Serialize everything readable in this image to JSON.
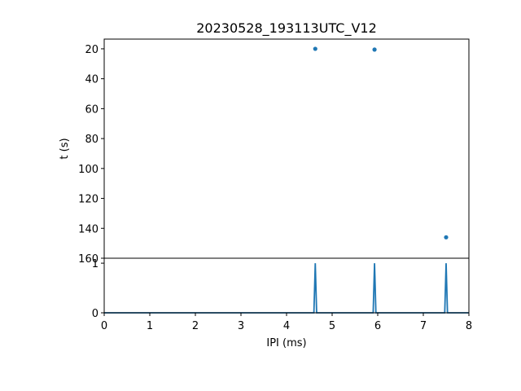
{
  "chart_data": {
    "title": "20230528_193113UTC_V12",
    "series_color": "#1f77b4",
    "top_panel": {
      "type": "scatter",
      "ylabel": "t (s)",
      "xlim": [
        0,
        8
      ],
      "ylim": [
        160,
        13.5
      ],
      "y_inverted": true,
      "yticks": [
        20,
        40,
        60,
        80,
        100,
        120,
        140,
        160
      ],
      "points": [
        {
          "x": 4.63,
          "y": 20.0
        },
        {
          "x": 5.93,
          "y": 20.5
        },
        {
          "x": 7.5,
          "y": 146.0
        }
      ]
    },
    "bottom_panel": {
      "type": "line",
      "xlabel": "IPI (ms)",
      "xlim": [
        0,
        8
      ],
      "ylim": [
        0,
        1.1
      ],
      "xticks": [
        0,
        1,
        2,
        3,
        4,
        5,
        6,
        7,
        8
      ],
      "yticks": [
        0,
        1
      ],
      "spikes": [
        {
          "x": 4.63,
          "y": 1.0
        },
        {
          "x": 5.93,
          "y": 1.0
        },
        {
          "x": 7.5,
          "y": 1.0
        }
      ],
      "spike_width": 0.03
    }
  }
}
